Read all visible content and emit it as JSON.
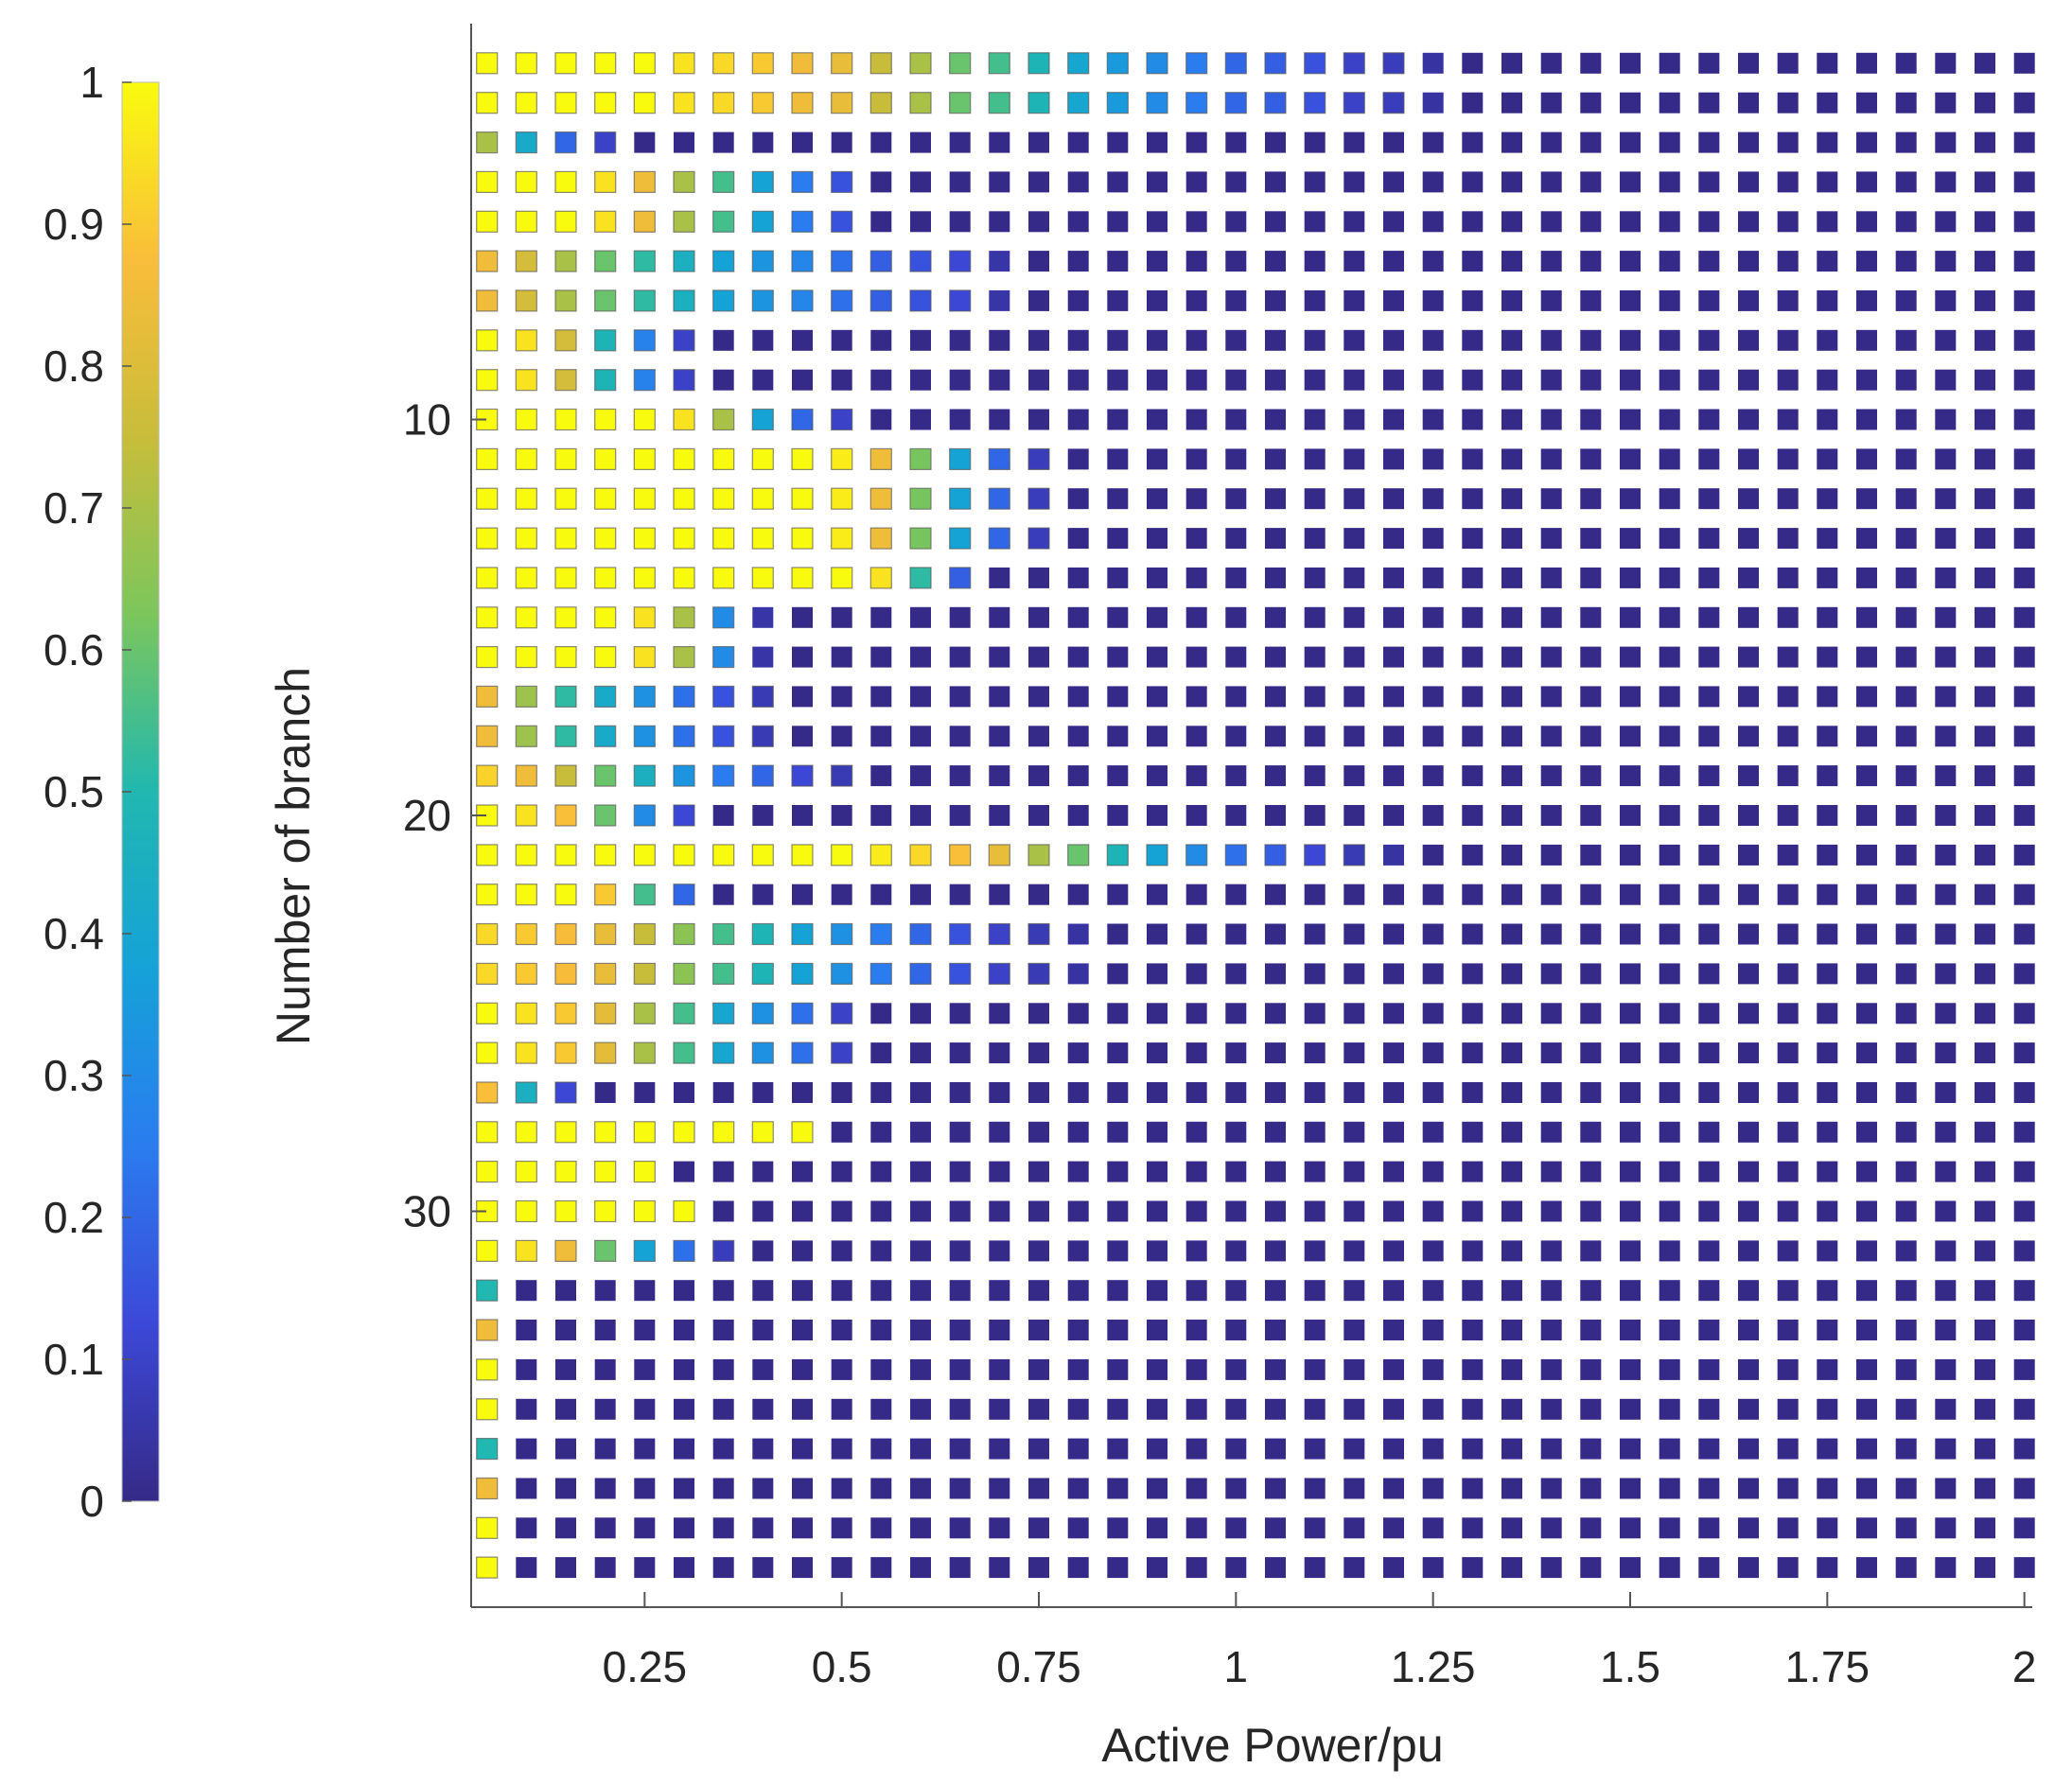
{
  "chart_data": {
    "type": "heatmap",
    "title": "",
    "xlabel": "Active Power/pu",
    "ylabel": "Number of branch",
    "x": [
      0.05,
      0.1,
      0.15,
      0.2,
      0.25,
      0.3,
      0.35,
      0.4,
      0.45,
      0.5,
      0.55,
      0.6,
      0.65,
      0.7,
      0.75,
      0.8,
      0.85,
      0.9,
      0.95,
      1.0,
      1.05,
      1.1,
      1.15,
      1.2,
      1.25,
      1.3,
      1.35,
      1.4,
      1.45,
      1.5,
      1.55,
      1.6,
      1.65,
      1.7,
      1.75,
      1.8,
      1.85,
      1.9,
      1.95,
      2.0
    ],
    "y": [
      1,
      2,
      3,
      4,
      5,
      6,
      7,
      8,
      9,
      10,
      11,
      12,
      13,
      14,
      15,
      16,
      17,
      18,
      19,
      20,
      21,
      22,
      23,
      24,
      25,
      26,
      27,
      28,
      29,
      30,
      31,
      32,
      33,
      34,
      35,
      36,
      37,
      38,
      39
    ],
    "xlim": [
      0.03,
      2.01
    ],
    "ylim": [
      0,
      40
    ],
    "y_reversed": true,
    "xticks": [
      "0.25",
      "0.5",
      "0.75",
      "1",
      "1.25",
      "1.5",
      "1.75",
      "2"
    ],
    "xtick_values": [
      0.25,
      0.5,
      0.75,
      1,
      1.25,
      1.5,
      1.75,
      2
    ],
    "yticks": [
      "10",
      "20",
      "30"
    ],
    "ytick_values": [
      10,
      20,
      30
    ],
    "colorbar": {
      "ticks": [
        "0",
        "0.1",
        "0.2",
        "0.3",
        "0.4",
        "0.5",
        "0.6",
        "0.7",
        "0.8",
        "0.9",
        "1"
      ],
      "tick_values": [
        0,
        0.1,
        0.2,
        0.3,
        0.4,
        0.5,
        0.6,
        0.7,
        0.8,
        0.9,
        1
      ],
      "range": [
        0,
        1
      ],
      "colormap": "parula"
    },
    "grid": false,
    "values_note_trailing_zeros_omitted": true,
    "values": [
      [
        1,
        1,
        1,
        1,
        1,
        0.95,
        0.93,
        0.9,
        0.85,
        0.83,
        0.75,
        0.7,
        0.6,
        0.55,
        0.48,
        0.4,
        0.35,
        0.3,
        0.25,
        0.2,
        0.18,
        0.15,
        0.1,
        0.08,
        0.04
      ],
      [
        1,
        1,
        1,
        1,
        1,
        0.95,
        0.93,
        0.9,
        0.85,
        0.83,
        0.75,
        0.7,
        0.6,
        0.55,
        0.48,
        0.4,
        0.35,
        0.3,
        0.25,
        0.2,
        0.18,
        0.15,
        0.1,
        0.08,
        0.04
      ],
      [
        0.7,
        0.42,
        0.2,
        0.1
      ],
      [
        1,
        1,
        1,
        0.95,
        0.85,
        0.7,
        0.55,
        0.38,
        0.25,
        0.15
      ],
      [
        1,
        1,
        1,
        0.95,
        0.85,
        0.7,
        0.55,
        0.38,
        0.25,
        0.15
      ],
      [
        0.85,
        0.78,
        0.7,
        0.6,
        0.52,
        0.45,
        0.38,
        0.33,
        0.28,
        0.22,
        0.18,
        0.15,
        0.12,
        0.05
      ],
      [
        0.85,
        0.78,
        0.7,
        0.6,
        0.52,
        0.45,
        0.38,
        0.33,
        0.28,
        0.22,
        0.18,
        0.15,
        0.12,
        0.05
      ],
      [
        1,
        0.95,
        0.78,
        0.48,
        0.27,
        0.1
      ],
      [
        1,
        0.95,
        0.78,
        0.48,
        0.27,
        0.1
      ],
      [
        1,
        1,
        1,
        1,
        1,
        0.95,
        0.7,
        0.38,
        0.2,
        0.1
      ],
      [
        1,
        1,
        1,
        1,
        1,
        1,
        1,
        1,
        1,
        0.97,
        0.85,
        0.62,
        0.38,
        0.2,
        0.08
      ],
      [
        1,
        1,
        1,
        1,
        1,
        1,
        1,
        1,
        1,
        0.97,
        0.85,
        0.62,
        0.38,
        0.2,
        0.08
      ],
      [
        1,
        1,
        1,
        1,
        1,
        1,
        1,
        1,
        1,
        0.97,
        0.85,
        0.62,
        0.38,
        0.2,
        0.08
      ],
      [
        1,
        1,
        1,
        1,
        1,
        1,
        1,
        1,
        1,
        1,
        0.95,
        0.52,
        0.18
      ],
      [
        1,
        1,
        1,
        1,
        0.95,
        0.7,
        0.3,
        0.05
      ],
      [
        1,
        1,
        1,
        1,
        0.95,
        0.7,
        0.3,
        0.05
      ],
      [
        0.85,
        0.68,
        0.52,
        0.42,
        0.32,
        0.22,
        0.15,
        0.07
      ],
      [
        0.85,
        0.68,
        0.52,
        0.42,
        0.32,
        0.22,
        0.15,
        0.07
      ],
      [
        0.92,
        0.85,
        0.75,
        0.6,
        0.45,
        0.33,
        0.25,
        0.2,
        0.12,
        0.07
      ],
      [
        1,
        0.95,
        0.88,
        0.6,
        0.3,
        0.12
      ],
      [
        1,
        1,
        1,
        1,
        1,
        1,
        1,
        1,
        1,
        1,
        0.97,
        0.93,
        0.88,
        0.83,
        0.7,
        0.6,
        0.48,
        0.38,
        0.3,
        0.22,
        0.18,
        0.12,
        0.07,
        0.04
      ],
      [
        1,
        1,
        1,
        0.9,
        0.55,
        0.2
      ],
      [
        0.93,
        0.9,
        0.87,
        0.83,
        0.75,
        0.65,
        0.55,
        0.48,
        0.38,
        0.32,
        0.25,
        0.2,
        0.15,
        0.1,
        0.07,
        0.04
      ],
      [
        0.93,
        0.9,
        0.87,
        0.83,
        0.75,
        0.65,
        0.55,
        0.48,
        0.38,
        0.32,
        0.25,
        0.2,
        0.15,
        0.1,
        0.07,
        0.04
      ],
      [
        1,
        0.95,
        0.9,
        0.82,
        0.7,
        0.55,
        0.4,
        0.32,
        0.22,
        0.1
      ],
      [
        1,
        0.95,
        0.9,
        0.82,
        0.7,
        0.55,
        0.4,
        0.32,
        0.22,
        0.1
      ],
      [
        0.88,
        0.45,
        0.12
      ],
      [
        1,
        1,
        1,
        1,
        1,
        1,
        1,
        1,
        1
      ],
      [
        1,
        1,
        1,
        1,
        1
      ],
      [
        1,
        1,
        1,
        1,
        1,
        1
      ],
      [
        1,
        0.95,
        0.85,
        0.6,
        0.38,
        0.22,
        0.08
      ],
      [
        0.5
      ],
      [
        0.85
      ],
      [
        1
      ],
      [
        1
      ],
      [
        0.5
      ],
      [
        0.85
      ],
      [
        1
      ],
      [
        1
      ]
    ]
  }
}
